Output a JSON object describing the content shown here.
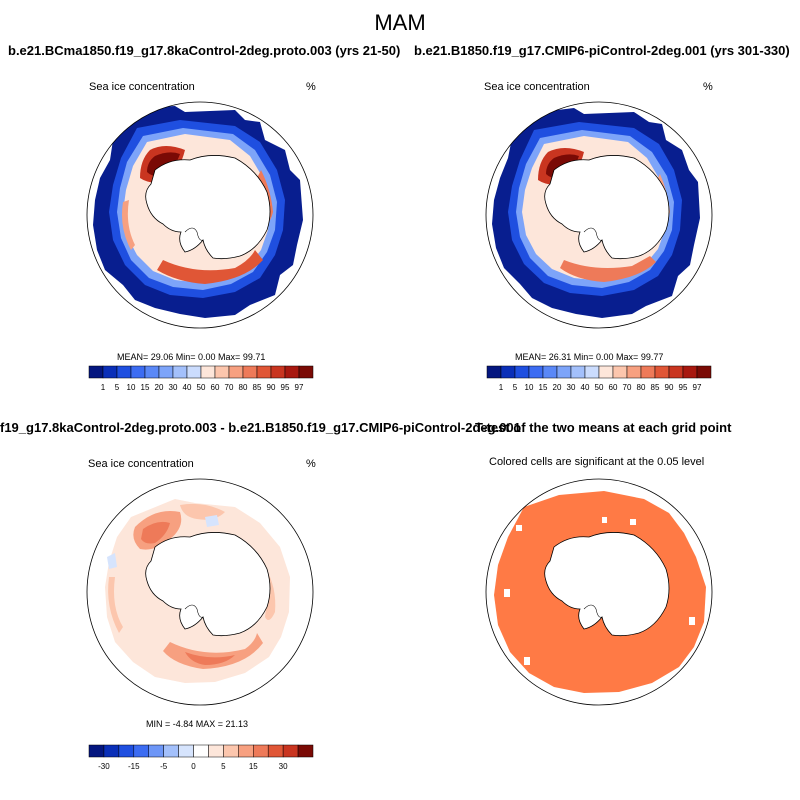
{
  "figure": {
    "title": "MAM"
  },
  "panels": {
    "p1": {
      "title": "b.e21.BCma1850.f19_g17.8kaControl-2deg.proto.003 (yrs 21-50)",
      "left_label": "Sea ice concentration",
      "right_label": "%",
      "stats": "MEAN=  29.06  Min=   0.00  Max=  99.71"
    },
    "p2": {
      "title": "b.e21.B1850.f19_g17.CMIP6-piControl-2deg.001 (yrs 301-330)",
      "left_label": "Sea ice concentration",
      "right_label": "%",
      "stats": "MEAN=  26.31  Min=   0.00  Max=  99.77"
    },
    "p3": {
      "title": "f19_g17.8kaControl-2deg.proto.003 - b.e21.B1850.f19_g17.CMIP6-piControl-2deg.001",
      "left_label": "Sea ice concentration",
      "right_label": "%",
      "stats": "MIN =  -4.84  MAX =  21.13"
    },
    "p4": {
      "title": "T-test of the two means at each grid point",
      "subtitle": "Colored cells are significant at the 0.05 level"
    }
  },
  "colorbars": {
    "concentration": {
      "labels": [
        "1",
        "5",
        "10",
        "15",
        "20",
        "30",
        "40",
        "50",
        "60",
        "70",
        "80",
        "85",
        "90",
        "95",
        "97"
      ],
      "colors": [
        "#04167f",
        "#0a2fb8",
        "#1f4fe0",
        "#3c6cf2",
        "#5a88f7",
        "#7da4f9",
        "#a3c0fb",
        "#cbdcfd",
        "#fde6da",
        "#fcc6ad",
        "#f7a080",
        "#ee7a59",
        "#e05636",
        "#c93520",
        "#a8180f",
        "#7a0a05"
      ]
    },
    "difference": {
      "labels": [
        "-30",
        "-15",
        "-5",
        "0",
        "5",
        "15",
        "30"
      ],
      "label_slots": [
        1,
        3,
        5,
        7,
        9,
        11,
        13
      ],
      "colors": [
        "#04167f",
        "#0a2fb8",
        "#1f4fe0",
        "#3c6cf2",
        "#6d96f7",
        "#a3c0fb",
        "#d6e4fd",
        "#ffffff",
        "#fde6da",
        "#fcc6ad",
        "#f7a080",
        "#ee7a59",
        "#e05636",
        "#c93520",
        "#7a0a05"
      ]
    }
  },
  "significance_color": "#ff7a45"
}
